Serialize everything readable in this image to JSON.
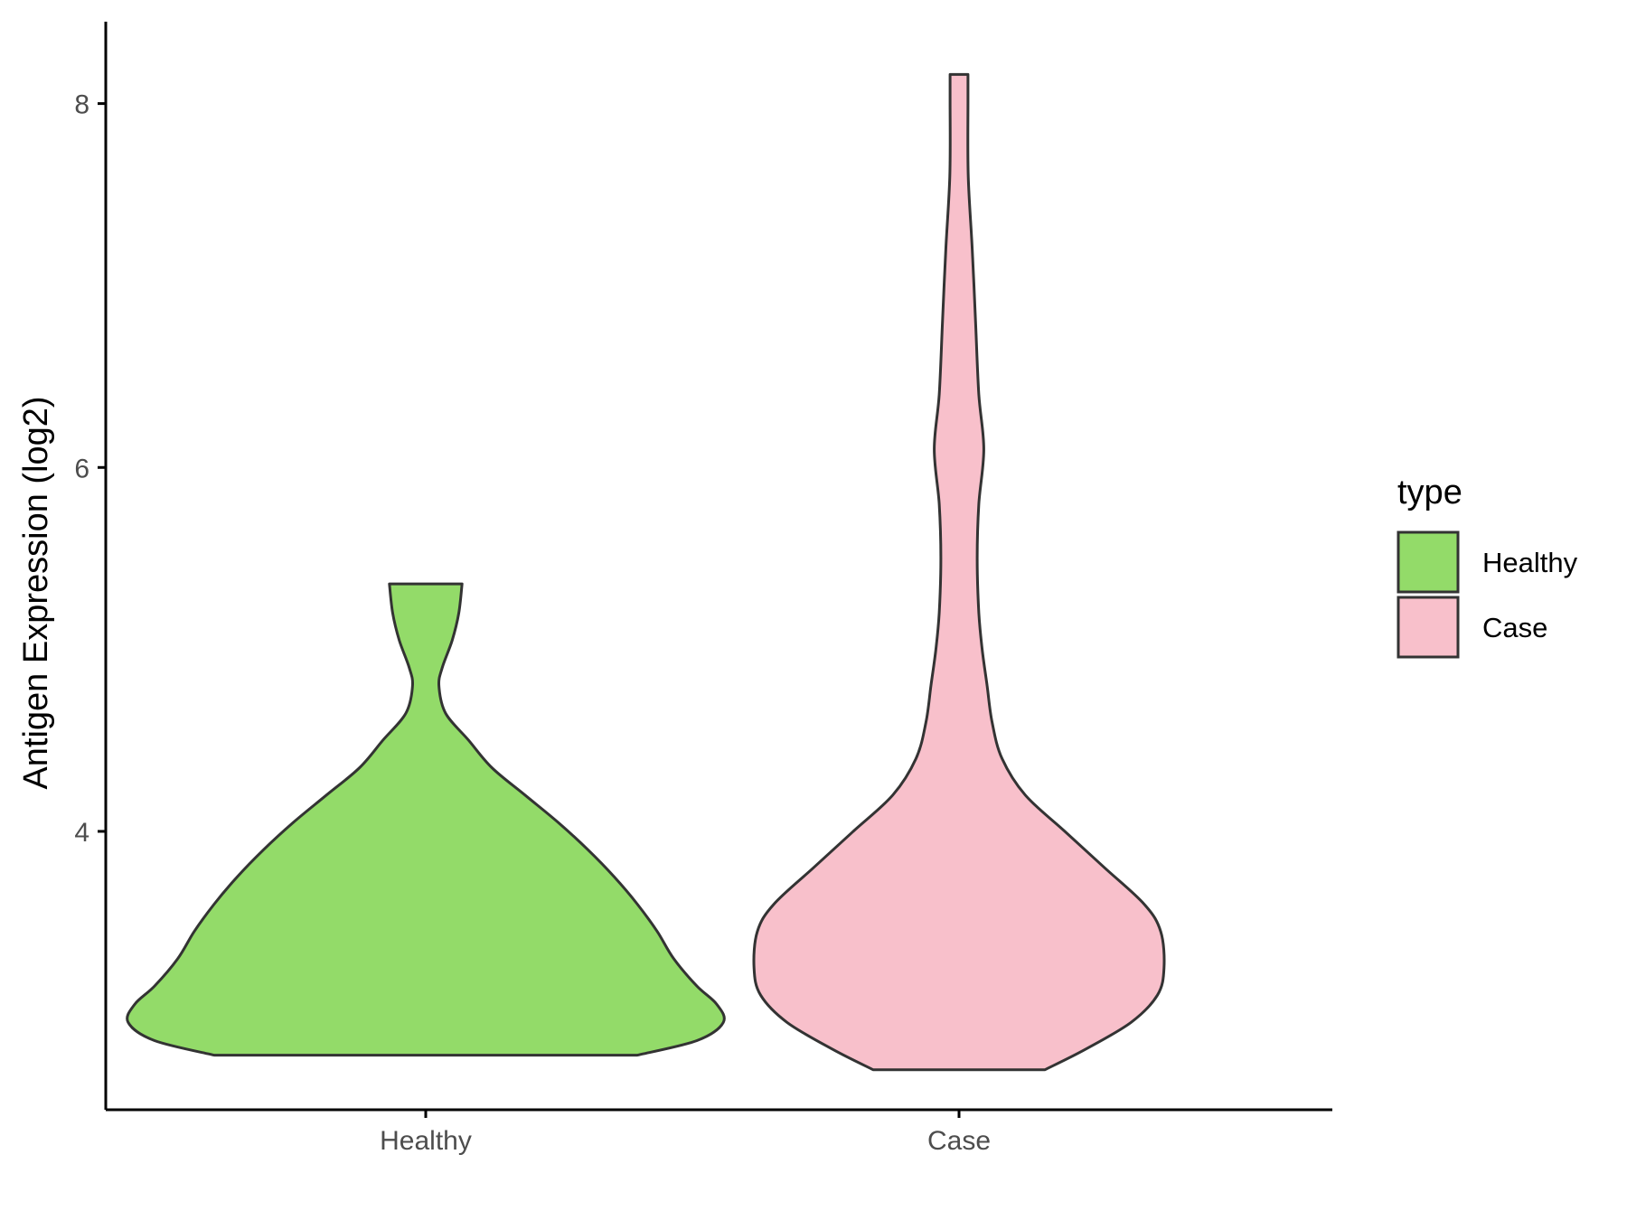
{
  "chart_data": {
    "type": "violin",
    "title": "",
    "xlabel": "",
    "ylabel": "Antigen Expression (log2)",
    "categories": [
      "Healthy",
      "Case"
    ],
    "y_ticks": [
      4,
      6,
      8
    ],
    "ylim": [
      2.47,
      8.45
    ],
    "grid": false,
    "legend": {
      "title": "type",
      "position": "right",
      "entries": [
        {
          "label": "Healthy",
          "color": "#93db69"
        },
        {
          "label": "Case",
          "color": "#f8c0cb"
        }
      ]
    },
    "series": [
      {
        "category": "Healthy",
        "color": "#93db69",
        "y_min": 2.77,
        "y_max": 5.36,
        "density_profile": [
          [
            2.77,
            0.64
          ],
          [
            2.85,
            0.82
          ],
          [
            2.95,
            0.9
          ],
          [
            3.05,
            0.88
          ],
          [
            3.15,
            0.82
          ],
          [
            3.3,
            0.75
          ],
          [
            3.45,
            0.7
          ],
          [
            3.6,
            0.64
          ],
          [
            3.75,
            0.57
          ],
          [
            3.9,
            0.49
          ],
          [
            4.05,
            0.4
          ],
          [
            4.2,
            0.3
          ],
          [
            4.35,
            0.2
          ],
          [
            4.5,
            0.13
          ],
          [
            4.65,
            0.06
          ],
          [
            4.8,
            0.04
          ],
          [
            4.9,
            0.05
          ],
          [
            5.05,
            0.08
          ],
          [
            5.2,
            0.1
          ],
          [
            5.36,
            0.11
          ]
        ]
      },
      {
        "category": "Case",
        "color": "#f8c0cb",
        "y_min": 2.69,
        "y_max": 8.16,
        "density_profile": [
          [
            2.69,
            0.26
          ],
          [
            2.8,
            0.38
          ],
          [
            2.95,
            0.52
          ],
          [
            3.1,
            0.6
          ],
          [
            3.25,
            0.62
          ],
          [
            3.45,
            0.61
          ],
          [
            3.6,
            0.56
          ],
          [
            3.8,
            0.44
          ],
          [
            4.0,
            0.32
          ],
          [
            4.2,
            0.2
          ],
          [
            4.4,
            0.13
          ],
          [
            4.6,
            0.1
          ],
          [
            4.8,
            0.085
          ],
          [
            5.0,
            0.07
          ],
          [
            5.2,
            0.06
          ],
          [
            5.5,
            0.055
          ],
          [
            5.8,
            0.06
          ],
          [
            6.1,
            0.075
          ],
          [
            6.4,
            0.06
          ],
          [
            6.8,
            0.05
          ],
          [
            7.2,
            0.04
          ],
          [
            7.6,
            0.028
          ],
          [
            8.0,
            0.027
          ],
          [
            8.16,
            0.027
          ]
        ]
      }
    ]
  }
}
